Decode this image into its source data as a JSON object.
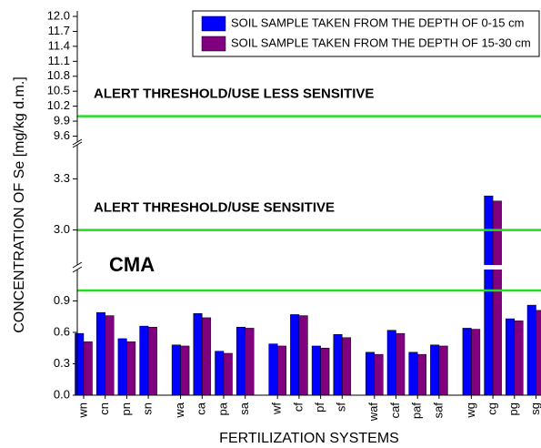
{
  "chart_data": {
    "type": "bar",
    "y_label": "CONCENTRATION OF Se [mg/kg d.m.]",
    "x_label": "FERTILIZATION SYSTEMS",
    "categories": [
      "wn",
      "cn",
      "pn",
      "sn",
      "wa",
      "ca",
      "pa",
      "sa",
      "wf",
      "cf",
      "pf",
      "sf",
      "waf",
      "caf",
      "paf",
      "saf",
      "wg",
      "cg",
      "pg",
      "sg"
    ],
    "series": [
      {
        "name": "SOIL SAMPLE TAKEN FROM THE DEPTH OF 0-15 cm",
        "color": "#0000ff",
        "values": [
          0.59,
          0.79,
          0.54,
          0.66,
          0.48,
          0.78,
          0.42,
          0.65,
          0.49,
          0.77,
          0.47,
          0.58,
          0.41,
          0.62,
          0.41,
          0.48,
          0.64,
          3.2,
          0.73,
          0.86
        ]
      },
      {
        "name": "SOIL SAMPLE TAKEN FROM THE DEPTH OF 15-30 cm",
        "color": "#800080",
        "values": [
          0.51,
          0.76,
          0.51,
          0.65,
          0.47,
          0.74,
          0.4,
          0.64,
          0.47,
          0.76,
          0.45,
          0.55,
          0.39,
          0.59,
          0.39,
          0.47,
          0.63,
          3.17,
          0.71,
          0.81
        ]
      }
    ],
    "y_segments": [
      {
        "ylim": [
          0,
          1.2
        ],
        "yticks": [
          {
            "value": 0,
            "label": "0.0"
          },
          0.3,
          0.6,
          0.9
        ]
      },
      {
        "ylim": [
          2.8,
          3.5
        ],
        "yticks": [
          {
            "value": 3,
            "label": "3.0"
          },
          3.3
        ]
      },
      {
        "ylim": [
          9.5,
          12.0
        ],
        "yticks": [
          9.6,
          9.9,
          10.2,
          10.5,
          10.8,
          11.1,
          11.4,
          11.7,
          {
            "value": 12,
            "label": "12.0"
          }
        ]
      }
    ],
    "reference_lines": [
      {
        "value": 1.0,
        "label": "CMA",
        "color": "#22dd22"
      },
      {
        "value": 3.0,
        "label": "ALERT THRESHOLD/USE SENSITIVE",
        "color": "#22dd22"
      },
      {
        "value": 10.0,
        "label": "ALERT THRESHOLD/USE LESS SENSITIVE",
        "color": "#22dd22"
      }
    ]
  }
}
